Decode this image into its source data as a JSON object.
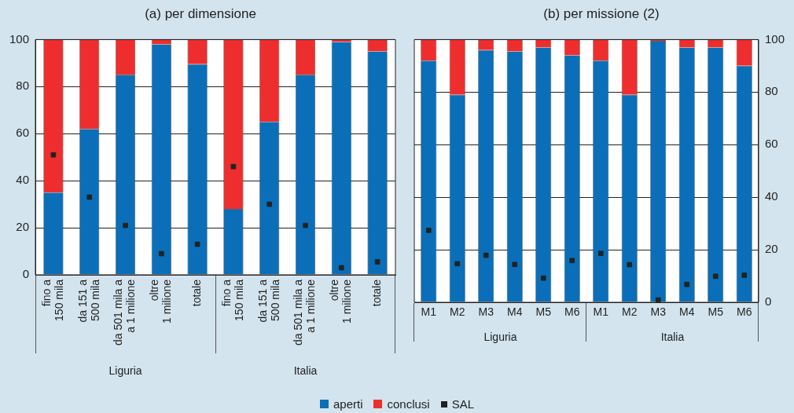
{
  "chart_data": [
    {
      "type": "bar",
      "title": "(a) per dimensione",
      "stacked": true,
      "grid": "y",
      "legend": "bottom",
      "categories": [
        "fino a\n150 mila",
        "da 151 a\n500 mila",
        "da 501 mila a\na 1 milione",
        "oltre\n1 milione",
        "totale",
        "fino a\n150 mila",
        "da 151 a\n500 mila",
        "da 501 mila a\na 1 milione",
        "oltre\n1 milione",
        "totale"
      ],
      "annotations": [
        "Liguria",
        "Italia"
      ],
      "ylim": [
        0,
        100
      ],
      "yticks": [
        0,
        20,
        40,
        60,
        80,
        100
      ],
      "series": [
        {
          "name": "aperti",
          "color": "#0a6fb8",
          "values": [
            35,
            62,
            85,
            98,
            89.5,
            28,
            65,
            85,
            99,
            95
          ]
        },
        {
          "name": "conclusi",
          "color": "#ee2e2e",
          "values": [
            65,
            38,
            15,
            2,
            10.5,
            72,
            35,
            15,
            1,
            5
          ]
        },
        {
          "name": "SAL",
          "type": "scatter",
          "marker": "square",
          "color": "#222222",
          "values": [
            51,
            33,
            21,
            9,
            13,
            46,
            30,
            21,
            3,
            5.5
          ]
        }
      ]
    },
    {
      "type": "bar",
      "title": "(b) per missione (2)",
      "stacked": true,
      "grid": "y",
      "legend": "bottom",
      "categories": [
        "M1",
        "M2",
        "M3",
        "M4",
        "M5",
        "M6",
        "M1",
        "M2",
        "M3",
        "M4",
        "M5",
        "M6"
      ],
      "annotations": [
        "Liguria",
        "Italia"
      ],
      "y2lim": [
        0,
        100
      ],
      "y2ticks": [
        0,
        20,
        40,
        60,
        80,
        100
      ],
      "series": [
        {
          "name": "aperti",
          "color": "#0a6fb8",
          "axis": "y2",
          "values": [
            92,
            79,
            96,
            95.5,
            97,
            94,
            92,
            79,
            99.5,
            97,
            97,
            90
          ]
        },
        {
          "name": "conclusi",
          "color": "#ee2e2e",
          "axis": "y2",
          "values": [
            8,
            21,
            4,
            4.5,
            3,
            6,
            8,
            21,
            0.5,
            3,
            3,
            10
          ]
        },
        {
          "name": "SAL",
          "type": "scatter",
          "marker": "square",
          "color": "#222222",
          "axis": "y2",
          "values": [
            27.4,
            14.7,
            17.9,
            14.4,
            9.2,
            15.9,
            18.6,
            14.3,
            0.9,
            6.8,
            9.9,
            10.3
          ]
        }
      ]
    }
  ]
}
